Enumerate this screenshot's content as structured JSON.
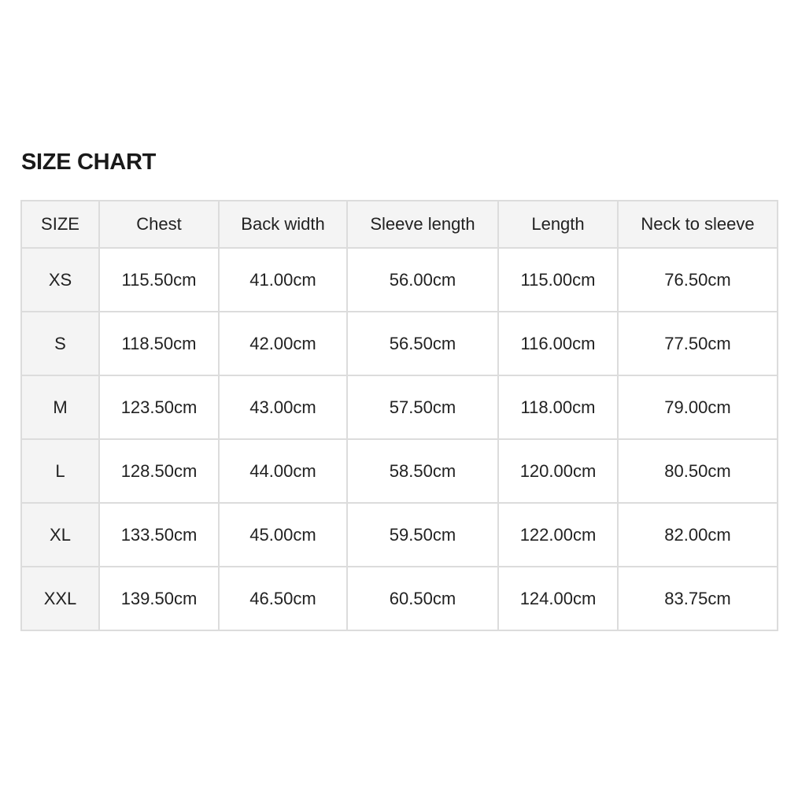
{
  "title": "SIZE CHART",
  "columns": [
    "SIZE",
    "Chest",
    "Back width",
    "Sleeve length",
    "Length",
    "Neck to sleeve"
  ],
  "rows": [
    [
      "XS",
      "115.50cm",
      "41.00cm",
      "56.00cm",
      "115.00cm",
      "76.50cm"
    ],
    [
      "S",
      "118.50cm",
      "42.00cm",
      "56.50cm",
      "116.00cm",
      "77.50cm"
    ],
    [
      "M",
      "123.50cm",
      "43.00cm",
      "57.50cm",
      "118.00cm",
      "79.00cm"
    ],
    [
      "L",
      "128.50cm",
      "44.00cm",
      "58.50cm",
      "120.00cm",
      "80.50cm"
    ],
    [
      "XL",
      "133.50cm",
      "45.00cm",
      "59.50cm",
      "122.00cm",
      "82.00cm"
    ],
    [
      "XXL",
      "139.50cm",
      "46.50cm",
      "60.50cm",
      "124.00cm",
      "83.75cm"
    ]
  ]
}
